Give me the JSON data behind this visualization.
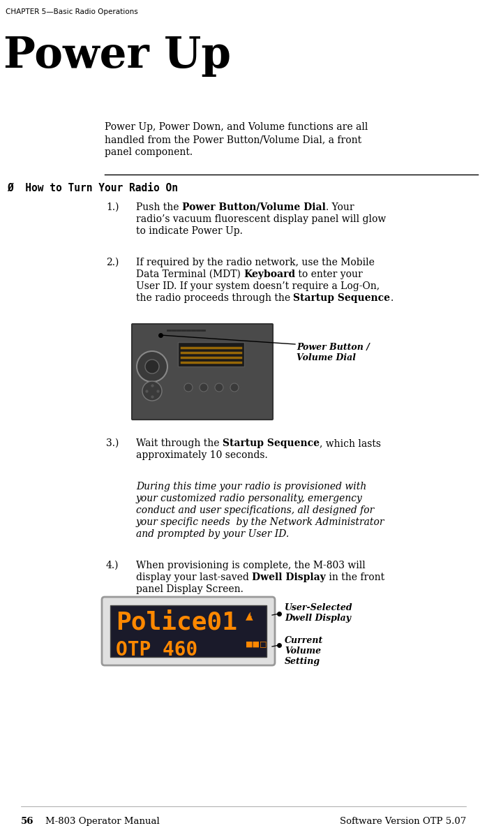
{
  "bg_color": "#ffffff",
  "header_text": "CHAPTER 5—Basic Radio Operations",
  "title_text": "Power Up",
  "intro_lines": [
    "Power Up, Power Down, and Volume functions are all",
    "handled from the Power Button/Volume Dial, a front",
    "panel component."
  ],
  "section_heading": "Ø  How to Turn Your Radio On",
  "steps": [
    {
      "num": "1.)",
      "lines": [
        [
          {
            "t": "Push the ",
            "b": false
          },
          {
            "t": "Power Button/Volume Dial",
            "b": true
          },
          {
            "t": ". Your",
            "b": false
          }
        ],
        [
          {
            "t": "radio’s vacuum fluorescent display panel will glow",
            "b": false
          }
        ],
        [
          {
            "t": "to indicate Power Up.",
            "b": false
          }
        ]
      ]
    },
    {
      "num": "2.)",
      "lines": [
        [
          {
            "t": "If required by the radio network, use the Mobile",
            "b": false
          }
        ],
        [
          {
            "t": "Data Terminal (MDT) ",
            "b": false
          },
          {
            "t": "Keyboard",
            "b": true
          },
          {
            "t": " to enter your",
            "b": false
          }
        ],
        [
          {
            "t": "User ID. If your system doesn’t require a Log-On,",
            "b": false
          }
        ],
        [
          {
            "t": "the radio proceeds through the ",
            "b": false
          },
          {
            "t": "Startup Sequence",
            "b": true
          },
          {
            "t": ".",
            "b": false
          }
        ]
      ]
    },
    {
      "num": "3.)",
      "lines": [
        [
          {
            "t": "Wait through the ",
            "b": false
          },
          {
            "t": "Startup Sequence",
            "b": true
          },
          {
            "t": ", which lasts",
            "b": false
          }
        ],
        [
          {
            "t": "approximately 10 seconds.",
            "b": false
          }
        ]
      ]
    },
    {
      "num": "4.)",
      "lines": [
        [
          {
            "t": "When provisioning is complete, the M-803 will",
            "b": false
          }
        ],
        [
          {
            "t": "display your last-saved ",
            "b": false
          },
          {
            "t": "Dwell Display",
            "b": true,
            "u": true
          },
          {
            "t": " in the front",
            "b": false
          }
        ],
        [
          {
            "t": "panel Display Screen.",
            "b": false
          }
        ]
      ]
    }
  ],
  "callout1_text": "Power Button /\nVolume Dial",
  "italic_lines": [
    "During this time your radio is provisioned with",
    "your customized radio personality, emergency",
    "conduct and user specifications, all designed for",
    "your specific needs  by the Network Administrator",
    "and prompted by your User ID."
  ],
  "callout2_text": "User-Selected\nDwell Display",
  "callout3_text": "Current\nVolume\nSetting",
  "display_line1": "Police01",
  "display_line2": "OTP 460",
  "footer_left_bold": "56",
  "footer_left_normal": "    M-803 Operator Manual",
  "footer_right": "Software Version OTP 5.07"
}
